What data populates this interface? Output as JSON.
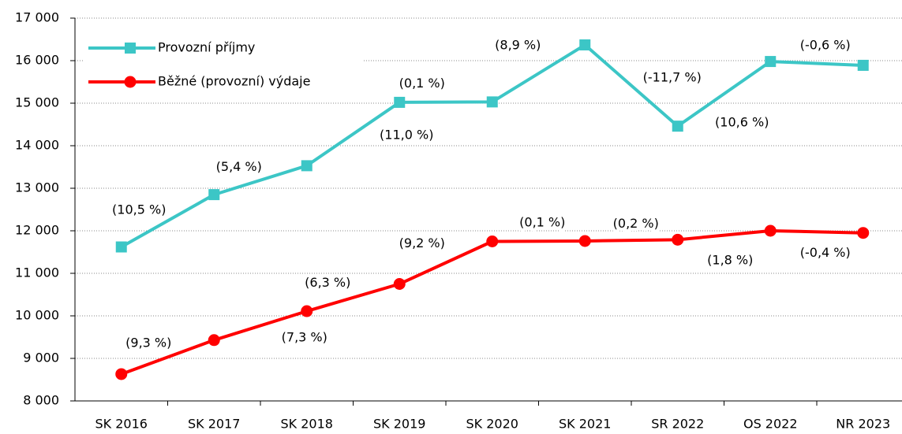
{
  "chart_data": {
    "type": "line",
    "categories": [
      "SK 2016",
      "SK 2017",
      "SK 2018",
      "SK 2019",
      "SK 2020",
      "SK 2021",
      "SR 2022",
      "OS 2022",
      "NR 2023"
    ],
    "series": [
      {
        "name": "Provozní příjmy",
        "color": "#3cc6c6",
        "marker": "square",
        "values": [
          11620,
          12850,
          13530,
          15020,
          15030,
          16370,
          14460,
          15980,
          15890
        ],
        "labels": [
          null,
          "(10,5 %)",
          "(5,4 %)",
          "(11,0 %)",
          "(0,1 %)",
          "(8,9 %)",
          "(-11,7 %)",
          "(10,6 %)",
          "(-0,6 %)"
        ]
      },
      {
        "name": "Běžné (provozní) výdaje",
        "color": "#ff0000",
        "marker": "circle",
        "values": [
          8630,
          9430,
          10110,
          10750,
          11750,
          11760,
          11790,
          12000,
          11950
        ],
        "labels": [
          null,
          "(9,3 %)",
          "(7,3 %)",
          "(6,3 %)",
          "(9,2 %)",
          "(0,1 %)",
          "(0,2 %)",
          "(1,8 %)",
          "(-0,4 %)"
        ]
      }
    ],
    "ylim": [
      8000,
      17000
    ],
    "yticks": [
      {
        "value": 8000,
        "label": "8 000"
      },
      {
        "value": 9000,
        "label": "9 000"
      },
      {
        "value": 10000,
        "label": "10 000"
      },
      {
        "value": 11000,
        "label": "11 000"
      },
      {
        "value": 12000,
        "label": "12 000"
      },
      {
        "value": 13000,
        "label": "13 000"
      },
      {
        "value": 14000,
        "label": "14 000"
      },
      {
        "value": 15000,
        "label": "15 000"
      },
      {
        "value": 16000,
        "label": "16 000"
      },
      {
        "value": 17000,
        "label": "17 000"
      }
    ],
    "grid": true,
    "legend": "upper left"
  }
}
